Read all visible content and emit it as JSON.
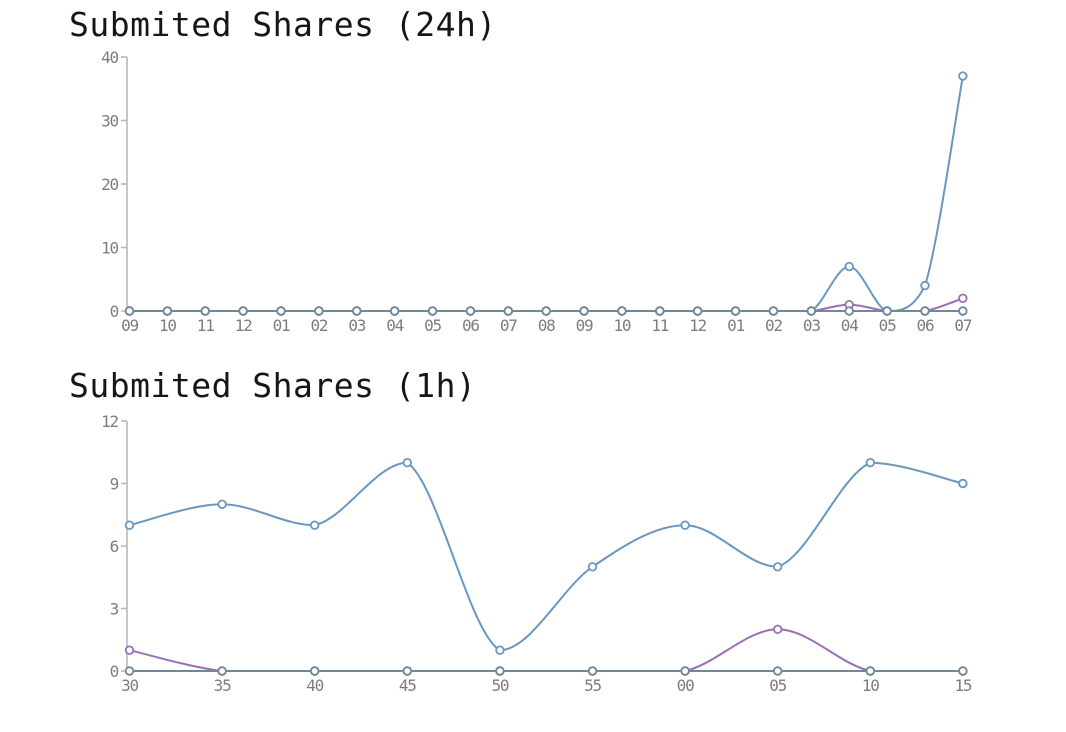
{
  "page": {
    "background": "#ffffff"
  },
  "colors": {
    "title": "#161616",
    "axis": "#b9b9b9",
    "tick_label": "#7d7d7d",
    "series_blue": "#6a97c0",
    "series_purple": "#9c6fb4",
    "series_gray_baseline": "#6f8a96"
  },
  "chart_data": [
    {
      "type": "line",
      "title": "Submited Shares (24h)",
      "xlabel": "",
      "ylabel": "",
      "ylim": [
        0,
        40
      ],
      "yticks": [
        0,
        10,
        20,
        30,
        40
      ],
      "grid": false,
      "legend": "none",
      "marker": "hollow-circle",
      "smooth": true,
      "categories": [
        "09",
        "10",
        "11",
        "12",
        "01",
        "02",
        "03",
        "04",
        "05",
        "06",
        "07",
        "08",
        "09",
        "10",
        "11",
        "12",
        "01",
        "02",
        "03",
        "04",
        "05",
        "06",
        "07"
      ],
      "series": [
        {
          "name": "blue",
          "color": "#6a97c0",
          "values": [
            0,
            0,
            0,
            0,
            0,
            0,
            0,
            0,
            0,
            0,
            0,
            0,
            0,
            0,
            0,
            0,
            0,
            0,
            0,
            7,
            0,
            4,
            37
          ]
        },
        {
          "name": "purple",
          "color": "#9c6fb4",
          "values": [
            0,
            0,
            0,
            0,
            0,
            0,
            0,
            0,
            0,
            0,
            0,
            0,
            0,
            0,
            0,
            0,
            0,
            0,
            0,
            1,
            0,
            0,
            2
          ]
        },
        {
          "name": "gray-baseline",
          "color": "#6f8a96",
          "values": [
            0,
            0,
            0,
            0,
            0,
            0,
            0,
            0,
            0,
            0,
            0,
            0,
            0,
            0,
            0,
            0,
            0,
            0,
            0,
            0,
            0,
            0,
            0
          ]
        }
      ]
    },
    {
      "type": "line",
      "title": "Submited Shares (1h)",
      "xlabel": "",
      "ylabel": "",
      "ylim": [
        0,
        12
      ],
      "yticks": [
        0,
        3,
        6,
        9,
        12
      ],
      "grid": false,
      "legend": "none",
      "marker": "hollow-circle",
      "smooth": true,
      "categories": [
        "30",
        "35",
        "40",
        "45",
        "50",
        "55",
        "00",
        "05",
        "10",
        "15"
      ],
      "series": [
        {
          "name": "blue",
          "color": "#6a97c0",
          "values": [
            7,
            8,
            7,
            10,
            1,
            5,
            7,
            5,
            10,
            9
          ]
        },
        {
          "name": "purple",
          "color": "#9c6fb4",
          "values": [
            1,
            0,
            0,
            0,
            0,
            0,
            0,
            2,
            0,
            0
          ]
        },
        {
          "name": "gray-baseline",
          "color": "#6f8a96",
          "values": [
            0,
            0,
            0,
            0,
            0,
            0,
            0,
            0,
            0,
            0
          ]
        }
      ]
    }
  ]
}
